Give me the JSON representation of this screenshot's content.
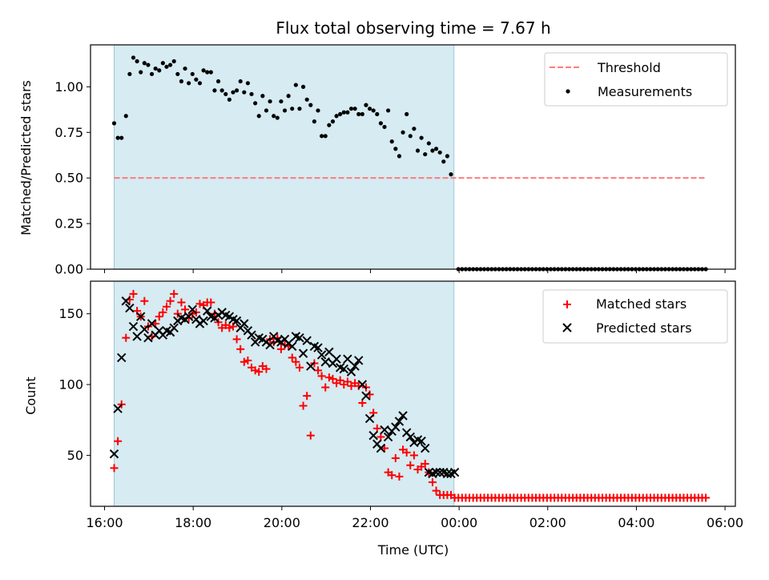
{
  "chart_data": [
    {
      "type": "scatter",
      "title": "Flux total observing time = 7.67 h",
      "ylabel": "Matched/Predicted stars",
      "xlim": [
        "15:41",
        "06:14"
      ],
      "ylim": [
        0,
        1.23
      ],
      "yticks": [
        "0.00",
        "0.25",
        "0.50",
        "0.75",
        "1.00"
      ],
      "shaded_interval": [
        "16:13",
        "23:53"
      ],
      "threshold": {
        "name": "Threshold",
        "value": 0.5,
        "x_start": "16:13",
        "x_end": "05:33",
        "color": "#ff7b7b"
      },
      "series": [
        {
          "name": "Measurements",
          "color": "#000000",
          "x": [
            "16:13",
            "16:18",
            "16:23",
            "16:29",
            "16:34",
            "16:39",
            "16:44",
            "16:49",
            "16:54",
            "16:59",
            "17:04",
            "17:09",
            "17:14",
            "17:19",
            "17:24",
            "17:29",
            "17:34",
            "17:39",
            "17:44",
            "17:49",
            "17:54",
            "17:59",
            "18:04",
            "18:09",
            "18:14",
            "18:19",
            "18:24",
            "18:29",
            "18:34",
            "18:39",
            "18:44",
            "18:49",
            "18:54",
            "18:59",
            "19:04",
            "19:09",
            "19:14",
            "19:19",
            "19:24",
            "19:29",
            "19:34",
            "19:39",
            "19:44",
            "19:49",
            "19:54",
            "19:59",
            "20:04",
            "20:09",
            "20:14",
            "20:19",
            "20:24",
            "20:29",
            "20:34",
            "20:39",
            "20:44",
            "20:49",
            "20:54",
            "20:59",
            "21:04",
            "21:09",
            "21:14",
            "21:19",
            "21:24",
            "21:29",
            "21:34",
            "21:39",
            "21:44",
            "21:49",
            "21:54",
            "21:59",
            "22:04",
            "22:09",
            "22:14",
            "22:19",
            "22:24",
            "22:29",
            "22:34",
            "22:39",
            "22:44",
            "22:49",
            "22:54",
            "22:59",
            "23:04",
            "23:09",
            "23:14",
            "23:19",
            "23:24",
            "23:29",
            "23:34",
            "23:39",
            "23:44",
            "23:49"
          ],
          "y": [
            0.8,
            0.72,
            0.72,
            0.84,
            1.07,
            1.16,
            1.14,
            1.08,
            1.13,
            1.12,
            1.07,
            1.1,
            1.09,
            1.13,
            1.11,
            1.12,
            1.14,
            1.07,
            1.03,
            1.1,
            1.02,
            1.07,
            1.04,
            1.02,
            1.09,
            1.08,
            1.08,
            0.98,
            1.03,
            0.98,
            0.96,
            0.93,
            0.97,
            0.98,
            1.03,
            0.97,
            1.02,
            0.96,
            0.91,
            0.84,
            0.95,
            0.87,
            0.92,
            0.84,
            0.83,
            0.92,
            0.87,
            0.95,
            0.88,
            1.01,
            0.88,
            1.0,
            0.93,
            0.9,
            0.81,
            0.87,
            0.73,
            0.73,
            0.79,
            0.81,
            0.84,
            0.85,
            0.86,
            0.86,
            0.88,
            0.88,
            0.85,
            0.85,
            0.9,
            0.88,
            0.87,
            0.85,
            0.8,
            0.78,
            0.87,
            0.7,
            0.66,
            0.62,
            0.75,
            0.85,
            0.73,
            0.77,
            0.65,
            0.72,
            0.63,
            0.69,
            0.65,
            0.66,
            0.64,
            0.59,
            0.62,
            0.52
          ]
        },
        {
          "name": "Measurements (zero)",
          "color": "#000000",
          "x_start": "23:59",
          "x_end": "05:34",
          "step_minutes": 5,
          "y": 0
        }
      ],
      "legend": {
        "position": "top-right",
        "entries": [
          "Threshold",
          "Measurements"
        ]
      }
    },
    {
      "type": "scatter",
      "xlabel": "Time (UTC)",
      "ylabel": "Count",
      "xlim": [
        "15:41",
        "06:14"
      ],
      "ylim": [
        14,
        173
      ],
      "yticks": [
        "50",
        "100",
        "150"
      ],
      "xticks": [
        "16:00",
        "18:00",
        "20:00",
        "22:00",
        "00:00",
        "02:00",
        "04:00",
        "06:00"
      ],
      "shaded_interval": [
        "16:13",
        "23:53"
      ],
      "series": [
        {
          "name": "Matched stars",
          "marker": "plus",
          "color": "#ff0000",
          "x": [
            "16:13",
            "16:18",
            "16:23",
            "16:29",
            "16:34",
            "16:39",
            "16:44",
            "16:49",
            "16:54",
            "16:59",
            "17:04",
            "17:09",
            "17:14",
            "17:19",
            "17:24",
            "17:29",
            "17:34",
            "17:39",
            "17:44",
            "17:49",
            "17:54",
            "17:59",
            "18:04",
            "18:09",
            "18:14",
            "18:19",
            "18:24",
            "18:29",
            "18:34",
            "18:39",
            "18:44",
            "18:49",
            "18:54",
            "18:59",
            "19:04",
            "19:09",
            "19:14",
            "19:19",
            "19:24",
            "19:29",
            "19:34",
            "19:39",
            "19:44",
            "19:49",
            "19:54",
            "19:59",
            "20:04",
            "20:09",
            "20:14",
            "20:19",
            "20:24",
            "20:29",
            "20:34",
            "20:39",
            "20:44",
            "20:49",
            "20:54",
            "20:59",
            "21:04",
            "21:09",
            "21:14",
            "21:19",
            "21:24",
            "21:29",
            "21:34",
            "21:39",
            "21:44",
            "21:49",
            "21:54",
            "21:59",
            "22:04",
            "22:09",
            "22:14",
            "22:19",
            "22:24",
            "22:29",
            "22:34",
            "22:39",
            "22:44",
            "22:49",
            "22:54",
            "22:59",
            "23:04",
            "23:09",
            "23:14",
            "23:19",
            "23:24",
            "23:29",
            "23:34",
            "23:39",
            "23:44",
            "23:49"
          ],
          "y": [
            41,
            60,
            86,
            133,
            160,
            164,
            152,
            148,
            159,
            141,
            134,
            143,
            148,
            151,
            155,
            159,
            164,
            150,
            158,
            153,
            147,
            150,
            151,
            157,
            156,
            158,
            158,
            150,
            144,
            140,
            142,
            140,
            141,
            132,
            125,
            116,
            117,
            112,
            110,
            109,
            113,
            111,
            132,
            130,
            133,
            125,
            128,
            127,
            119,
            116,
            112,
            85,
            92,
            64,
            115,
            110,
            106,
            98,
            105,
            104,
            101,
            103,
            100,
            102,
            99,
            101,
            99,
            87,
            98,
            93,
            80,
            69,
            63,
            55,
            38,
            36,
            48,
            35,
            54,
            52,
            43,
            50,
            40,
            42,
            44,
            38,
            31,
            25,
            22,
            22,
            22,
            22
          ],
          "tail": {
            "x_start": "23:54",
            "x_end": "05:34",
            "step_minutes": 5,
            "y": 20
          }
        },
        {
          "name": "Predicted stars",
          "marker": "x",
          "color": "#000000",
          "x": [
            "16:13",
            "16:18",
            "16:23",
            "16:29",
            "16:34",
            "16:39",
            "16:44",
            "16:49",
            "16:54",
            "16:59",
            "17:04",
            "17:09",
            "17:14",
            "17:19",
            "17:24",
            "17:29",
            "17:34",
            "17:39",
            "17:44",
            "17:49",
            "17:54",
            "17:59",
            "18:04",
            "18:09",
            "18:14",
            "18:19",
            "18:24",
            "18:29",
            "18:34",
            "18:39",
            "18:44",
            "18:49",
            "18:54",
            "18:59",
            "19:04",
            "19:09",
            "19:14",
            "19:19",
            "19:24",
            "19:29",
            "19:34",
            "19:39",
            "19:44",
            "19:49",
            "19:54",
            "19:59",
            "20:04",
            "20:09",
            "20:14",
            "20:19",
            "20:24",
            "20:29",
            "20:34",
            "20:39",
            "20:44",
            "20:49",
            "20:54",
            "20:59",
            "21:04",
            "21:09",
            "21:14",
            "21:19",
            "21:24",
            "21:29",
            "21:34",
            "21:39",
            "21:44",
            "21:49",
            "21:54",
            "21:59",
            "22:04",
            "22:09",
            "22:14",
            "22:19",
            "22:24",
            "22:29",
            "22:34",
            "22:39",
            "22:44",
            "22:49",
            "22:54",
            "22:59",
            "23:04",
            "23:09",
            "23:14",
            "23:19",
            "23:24",
            "23:29",
            "23:34",
            "23:39",
            "23:44",
            "23:49",
            "23:54"
          ],
          "y": [
            51,
            83,
            119,
            159,
            154,
            141,
            134,
            148,
            139,
            133,
            143,
            135,
            138,
            135,
            138,
            137,
            140,
            145,
            147,
            146,
            148,
            153,
            146,
            143,
            145,
            152,
            148,
            147,
            149,
            151,
            149,
            148,
            146,
            145,
            140,
            143,
            138,
            135,
            130,
            133,
            132,
            130,
            128,
            134,
            131,
            130,
            132,
            129,
            127,
            134,
            133,
            122,
            131,
            113,
            127,
            126,
            121,
            116,
            123,
            115,
            118,
            112,
            111,
            118,
            109,
            113,
            117,
            100,
            92,
            76,
            64,
            58,
            55,
            68,
            63,
            67,
            70,
            74,
            78,
            66,
            63,
            59,
            61,
            60,
            55,
            38,
            37,
            38,
            38,
            38,
            37,
            37,
            38
          ]
        }
      ],
      "legend": {
        "position": "top-right",
        "entries": [
          "Matched stars",
          "Predicted stars"
        ]
      }
    }
  ]
}
